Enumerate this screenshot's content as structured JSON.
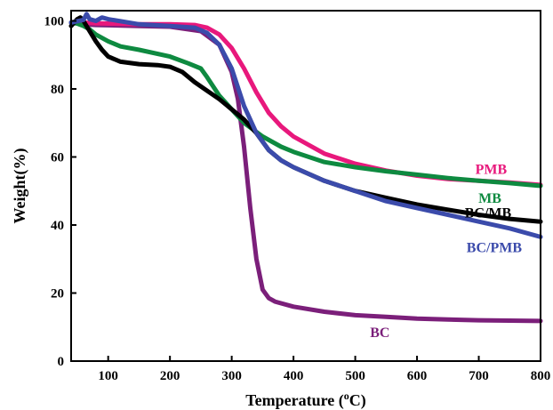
{
  "chart_data": {
    "type": "line",
    "xlabel": "Temperature (°C)",
    "xlabel_parts": {
      "before": "Temperature (",
      "sup": "o",
      "after": "C)"
    },
    "ylabel": "Weight(%)",
    "xlim": [
      40,
      800
    ],
    "ylim": [
      0,
      103
    ],
    "xticks": [
      100,
      200,
      300,
      400,
      500,
      600,
      700,
      800
    ],
    "yticks": [
      0,
      20,
      40,
      60,
      80,
      100
    ],
    "grid": false,
    "legend": "inline labels at right",
    "series": [
      {
        "name": "BC",
        "color": "#7b1f7a",
        "label_at": [
          540,
          7
        ],
        "x": [
          40,
          50,
          60,
          80,
          100,
          150,
          200,
          250,
          280,
          300,
          310,
          320,
          330,
          340,
          350,
          360,
          370,
          400,
          450,
          500,
          550,
          600,
          650,
          700,
          750,
          800
        ],
        "y": [
          99.5,
          99.3,
          99,
          98.8,
          98.7,
          98.5,
          98.3,
          97,
          93,
          85,
          77,
          63,
          45,
          30,
          21,
          18.5,
          17.5,
          16,
          14.5,
          13.5,
          13,
          12.5,
          12.2,
          12,
          11.9,
          11.8
        ]
      },
      {
        "name": "PMB",
        "color": "#e8187c",
        "label_at": [
          720,
          55
        ],
        "x": [
          40,
          50,
          60,
          80,
          100,
          150,
          200,
          240,
          260,
          280,
          300,
          320,
          340,
          360,
          380,
          400,
          450,
          500,
          550,
          600,
          650,
          700,
          750,
          800
        ],
        "y": [
          99.5,
          99.5,
          99.5,
          99.3,
          99.2,
          99,
          99,
          98.8,
          98,
          96,
          92,
          86,
          79,
          73,
          69,
          66,
          61,
          58,
          56,
          54.5,
          53.5,
          53,
          52.5,
          51.8
        ]
      },
      {
        "name": "MB",
        "color": "#0e8a40",
        "label_at": [
          718,
          46.5
        ],
        "x": [
          40,
          50,
          60,
          70,
          80,
          100,
          120,
          150,
          200,
          230,
          250,
          260,
          280,
          300,
          320,
          350,
          380,
          400,
          450,
          500,
          550,
          600,
          650,
          700,
          750,
          800
        ],
        "y": [
          99.5,
          99.2,
          98.5,
          97.5,
          96,
          94,
          92.5,
          91.5,
          89.5,
          87.5,
          86,
          83.5,
          78,
          74,
          70,
          66,
          63,
          61.5,
          58.5,
          57,
          55.8,
          54.8,
          53.8,
          53,
          52.3,
          51.5
        ]
      },
      {
        "name": "BC/MB",
        "color": "#000000",
        "label_at": [
          715,
          42.2
        ],
        "x": [
          40,
          50,
          55,
          60,
          70,
          80,
          90,
          100,
          120,
          150,
          180,
          200,
          220,
          240,
          260,
          280,
          300,
          320,
          340,
          360,
          380,
          400,
          450,
          500,
          550,
          600,
          650,
          700,
          750,
          800
        ],
        "y": [
          98.5,
          100.5,
          101,
          100,
          97,
          94,
          91.5,
          89.5,
          88,
          87.3,
          87,
          86.5,
          85,
          82,
          79.5,
          77,
          74,
          71,
          67,
          62,
          59,
          57,
          53,
          50,
          48,
          46,
          44.5,
          43,
          41.8,
          41
        ]
      },
      {
        "name": "BC/PMB",
        "color": "#3b4bab",
        "label_at": [
          725,
          32
        ],
        "x": [
          40,
          60,
          65,
          70,
          80,
          90,
          100,
          150,
          200,
          240,
          260,
          280,
          300,
          320,
          340,
          360,
          380,
          400,
          450,
          500,
          550,
          600,
          650,
          700,
          750,
          800
        ],
        "y": [
          99.5,
          100.3,
          102,
          100.5,
          100,
          101,
          100.5,
          99,
          98.5,
          98,
          96.5,
          93,
          86,
          75,
          67,
          62,
          59,
          57,
          53,
          50,
          47,
          45,
          43,
          41,
          39,
          36.5
        ]
      }
    ]
  }
}
